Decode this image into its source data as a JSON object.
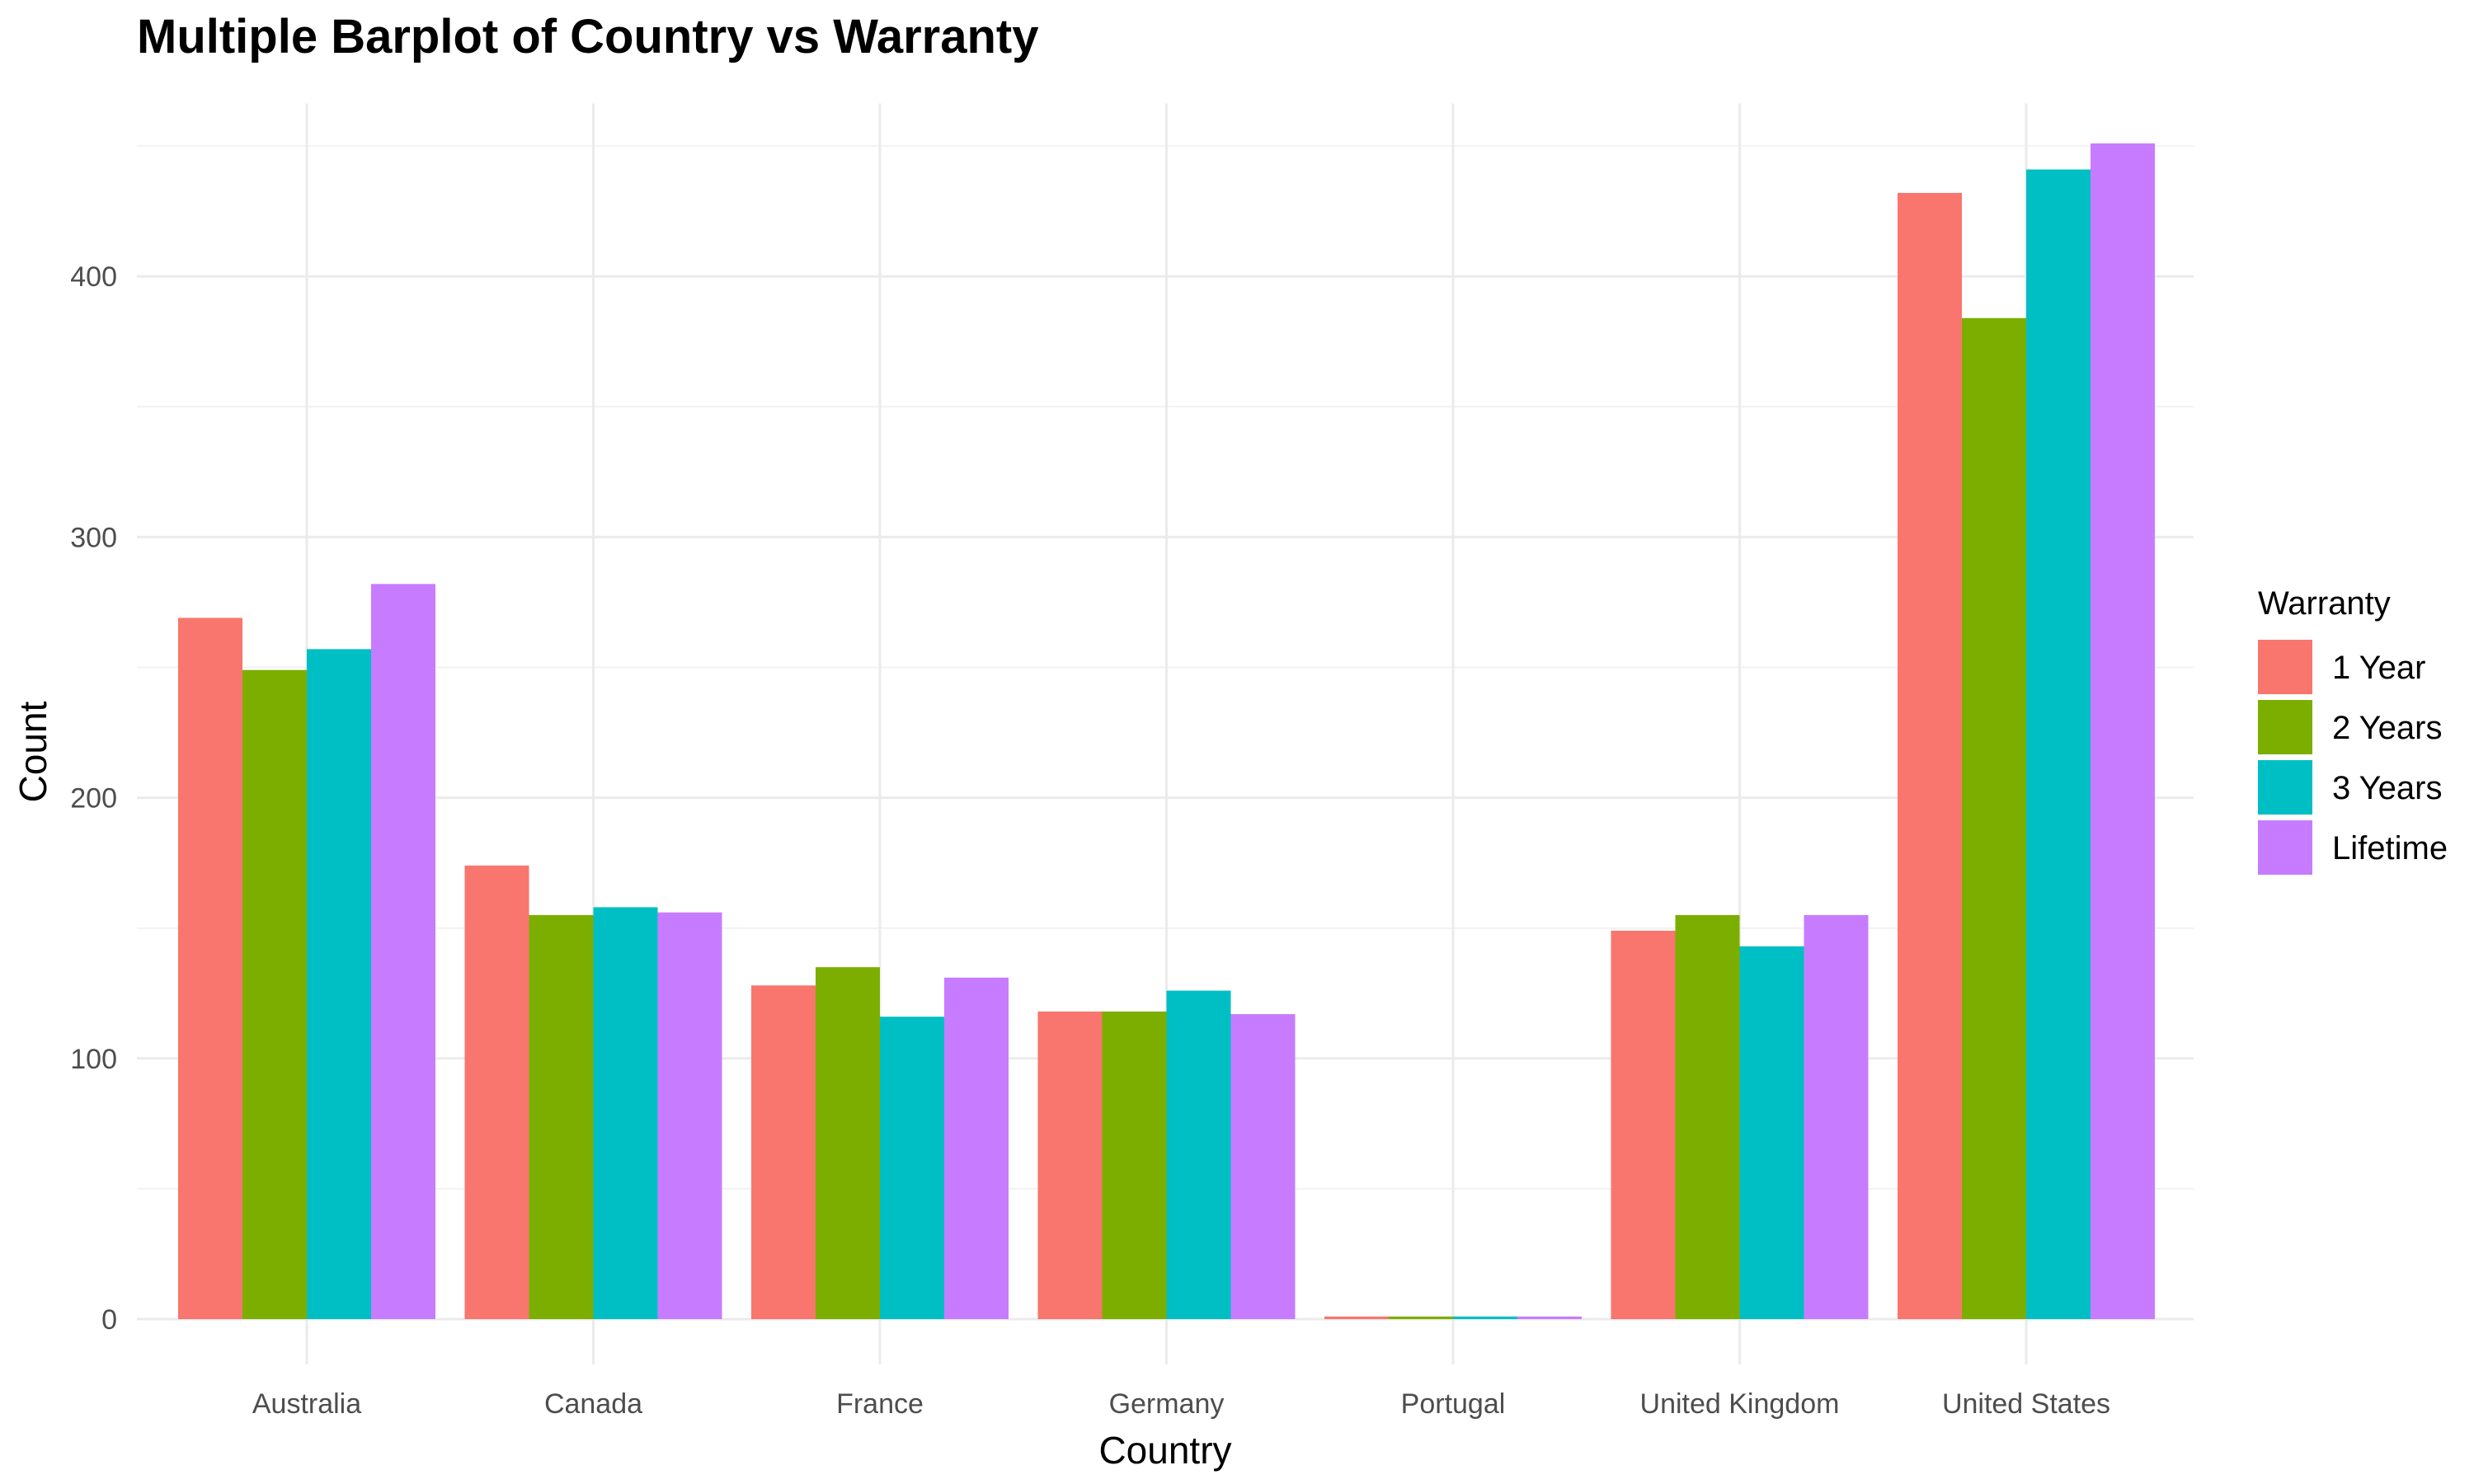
{
  "chart_data": {
    "type": "bar",
    "title": "Multiple Barplot of Country vs Warranty",
    "xlabel": "Country",
    "ylabel": "Count",
    "categories": [
      "Australia",
      "Canada",
      "France",
      "Germany",
      "Portugal",
      "United Kingdom",
      "United States"
    ],
    "series": [
      {
        "name": "1 Year",
        "color": "#F8766D",
        "values": [
          269,
          174,
          128,
          118,
          1,
          149,
          432
        ]
      },
      {
        "name": "2 Years",
        "color": "#7CAE00",
        "values": [
          249,
          155,
          135,
          118,
          1,
          155,
          384
        ]
      },
      {
        "name": "3 Years",
        "color": "#00BFC4",
        "values": [
          257,
          158,
          116,
          126,
          1,
          143,
          441
        ]
      },
      {
        "name": "Lifetime",
        "color": "#C77CFF",
        "values": [
          282,
          156,
          131,
          117,
          1,
          155,
          451
        ]
      }
    ],
    "ylim": [
      0,
      460
    ],
    "yticks": [
      0,
      100,
      200,
      300,
      400
    ],
    "grid": true,
    "legend": {
      "title": "Warranty",
      "position": "right"
    }
  }
}
